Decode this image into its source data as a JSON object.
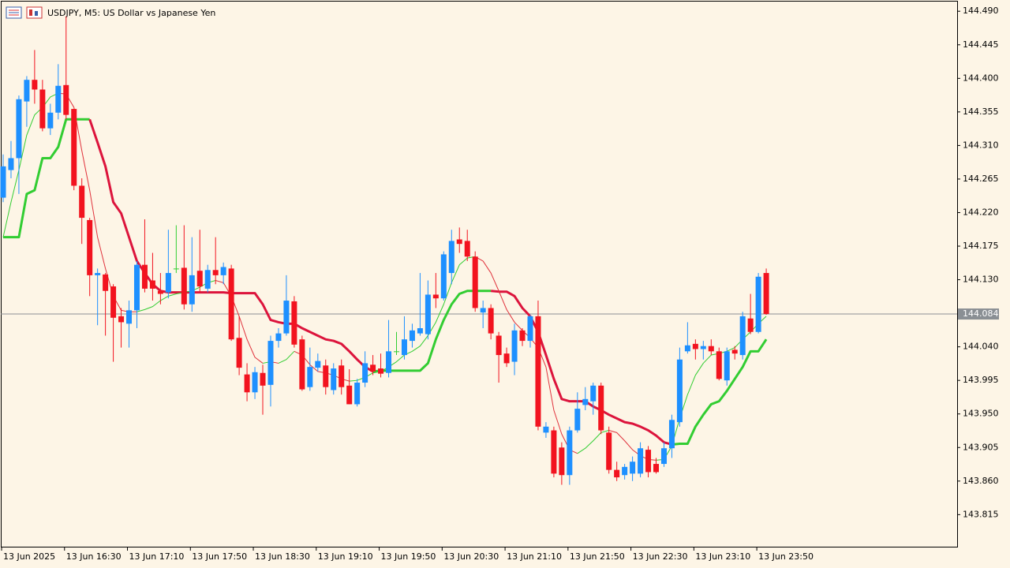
{
  "chart_data": {
    "type": "candlestick",
    "title": "USDJPY, M5:  US Dollar vs Japanese Yen",
    "categories": [
      "13 Jun 2025",
      null,
      null,
      null,
      null,
      null,
      null,
      null,
      "13 Jun 16:30",
      null,
      null,
      null,
      null,
      null,
      null,
      null,
      "13 Jun 17:10",
      null,
      null,
      null,
      null,
      null,
      null,
      null,
      "13 Jun 17:50",
      null,
      null,
      null,
      null,
      null,
      null,
      null,
      "13 Jun 18:30",
      null,
      null,
      null,
      null,
      null,
      null,
      null,
      "13 Jun 19:10",
      null,
      null,
      null,
      null,
      null,
      null,
      null,
      "13 Jun 19:50",
      null,
      null,
      null,
      null,
      null,
      null,
      null,
      "13 Jun 20:30",
      null,
      null,
      null,
      null,
      null,
      null,
      null,
      "13 Jun 21:10",
      null,
      null,
      null,
      null,
      null,
      null,
      null,
      "13 Jun 21:50",
      null,
      null,
      null,
      null,
      null,
      null,
      null,
      "13 Jun 22:30",
      null,
      null,
      null,
      null,
      null,
      null,
      null,
      "13 Jun 23:10",
      null,
      null,
      null,
      null,
      null,
      null,
      null,
      "13 Jun 23:50",
      null
    ],
    "open": [
      144.24,
      144.277,
      144.293,
      144.369,
      144.398,
      144.385,
      144.333,
      144.354,
      144.391,
      144.359,
      144.256,
      144.21,
      144.136,
      144.137,
      144.121,
      144.081,
      144.071,
      144.089,
      144.15,
      144.129,
      144.115,
      144.113,
      144.145,
      144.146,
      144.097,
      144.142,
      144.118,
      144.143,
      144.136,
      144.145,
      144.052,
      144.003,
      143.979,
      144.005,
      143.989,
      144.048,
      144.058,
      144.101,
      144.05,
      143.986,
      144.012,
      144.015,
      143.982,
      144.015,
      143.988,
      143.963,
      143.992,
      144.016,
      144.011,
      144.005,
      144.034,
      144.029,
      144.048,
      144.058,
      144.057,
      144.11,
      144.105,
      144.139,
      144.184,
      144.182,
      144.161,
      144.086,
      144.092,
      144.055,
      144.031,
      144.02,
      144.062,
      144.048,
      144.081,
      143.925,
      143.928,
      143.905,
      143.868,
      143.928,
      143.962,
      143.967,
      143.988,
      143.925,
      143.875,
      143.868,
      143.87,
      143.87,
      143.902,
      143.883,
      143.883,
      143.904,
      143.939,
      144.034,
      144.044,
      144.037,
      144.041,
      144.034,
      143.995,
      144.036,
      144.029,
      144.078,
      144.06,
      144.139
    ],
    "high": [
      144.298,
      144.316,
      144.377,
      144.403,
      144.438,
      144.398,
      144.366,
      144.419,
      144.483,
      144.359,
      144.266,
      144.213,
      144.145,
      144.139,
      144.124,
      144.092,
      144.102,
      144.155,
      144.211,
      144.166,
      144.139,
      144.197,
      144.203,
      144.203,
      144.187,
      144.197,
      144.15,
      144.187,
      144.153,
      144.15,
      144.081,
      144.018,
      144.013,
      144.016,
      144.055,
      144.065,
      144.136,
      144.108,
      144.055,
      144.039,
      144.031,
      144.023,
      144.018,
      144.023,
      144.01,
      143.997,
      144.034,
      144.029,
      144.031,
      144.076,
      144.06,
      144.081,
      144.071,
      144.139,
      144.129,
      144.139,
      144.168,
      144.197,
      144.2,
      144.197,
      144.168,
      144.102,
      144.097,
      144.06,
      144.039,
      144.071,
      144.065,
      144.083,
      144.102,
      143.939,
      143.933,
      143.912,
      143.933,
      143.979,
      143.986,
      143.992,
      143.992,
      143.933,
      143.886,
      143.883,
      143.893,
      143.912,
      143.907,
      143.891,
      143.912,
      143.949,
      144.039,
      144.073,
      144.05,
      144.048,
      144.05,
      144.039,
      144.039,
      144.041,
      144.087,
      144.111,
      144.139,
      144.145
    ],
    "low": [
      144.234,
      144.266,
      144.245,
      144.335,
      144.366,
      144.329,
      144.324,
      144.345,
      144.345,
      144.25,
      144.178,
      144.108,
      144.069,
      144.055,
      144.02,
      144.039,
      144.039,
      144.065,
      144.113,
      144.102,
      144.097,
      144.105,
      144.139,
      144.09,
      144.087,
      144.113,
      144.113,
      144.124,
      144.124,
      144.048,
      144.002,
      143.967,
      143.97,
      143.949,
      143.96,
      144.039,
      144.055,
      144.039,
      143.981,
      143.981,
      144.007,
      143.976,
      143.976,
      143.976,
      143.963,
      143.96,
      143.986,
      144.002,
      143.999,
      143.999,
      144.029,
      144.023,
      144.039,
      144.055,
      144.05,
      144.092,
      144.102,
      144.124,
      144.166,
      144.155,
      144.087,
      144.065,
      144.05,
      143.992,
      144.013,
      144.002,
      144.041,
      144.039,
      143.928,
      143.918,
      143.865,
      143.855,
      143.855,
      143.925,
      143.955,
      143.949,
      143.923,
      143.87,
      143.86,
      143.862,
      143.86,
      143.865,
      143.865,
      143.87,
      143.879,
      143.891,
      143.933,
      144.031,
      144.023,
      144.023,
      144.029,
      143.995,
      143.988,
      144.023,
      144.023,
      144.057,
      144.058,
      144.083
    ],
    "close": [
      144.282,
      144.293,
      144.372,
      144.398,
      144.385,
      144.333,
      144.354,
      144.39,
      144.351,
      144.256,
      144.213,
      144.136,
      144.139,
      144.115,
      144.079,
      144.073,
      144.089,
      144.15,
      144.118,
      144.118,
      144.111,
      144.139,
      144.145,
      144.097,
      144.136,
      144.121,
      144.143,
      144.136,
      144.147,
      144.05,
      144.012,
      143.979,
      144.006,
      143.988,
      144.048,
      144.058,
      144.102,
      144.043,
      143.983,
      144.013,
      144.021,
      143.986,
      144.011,
      143.986,
      143.963,
      143.992,
      144.018,
      144.007,
      144.004,
      144.034,
      144.034,
      144.05,
      144.062,
      144.065,
      144.11,
      144.105,
      144.164,
      144.182,
      144.178,
      144.161,
      144.092,
      144.092,
      144.058,
      144.029,
      144.018,
      144.062,
      144.048,
      144.081,
      143.933,
      143.933,
      143.87,
      143.868,
      143.928,
      143.957,
      143.97,
      143.988,
      143.928,
      143.875,
      143.865,
      143.879,
      143.886,
      143.904,
      143.872,
      143.872,
      143.904,
      143.942,
      144.023,
      144.042,
      144.037,
      144.041,
      144.034,
      143.997,
      144.034,
      144.031,
      144.081,
      144.06,
      144.134,
      144.084
    ],
    "candle_colors": {
      "up": "#1e90ff",
      "down": "#f2131f",
      "doji": "#32cd32"
    },
    "overlays": [
      {
        "width": 3,
        "up_color": "#32cd32",
        "down_color": "#dc143c",
        "values": [
          144.187,
          144.187,
          144.187,
          144.245,
          144.25,
          144.293,
          144.293,
          144.308,
          144.345,
          144.345,
          144.345,
          144.345,
          144.314,
          144.282,
          144.234,
          144.219,
          144.187,
          144.155,
          144.139,
          144.124,
          144.115,
          144.113,
          144.113,
          144.113,
          144.113,
          144.113,
          144.113,
          144.113,
          144.113,
          144.112,
          144.112,
          144.112,
          144.112,
          144.097,
          144.076,
          144.073,
          144.071,
          144.071,
          144.065,
          144.06,
          144.055,
          144.05,
          144.048,
          144.044,
          144.034,
          144.023,
          144.013,
          144.007,
          144.008,
          144.008,
          144.008,
          144.008,
          144.008,
          144.008,
          144.018,
          144.05,
          144.076,
          144.097,
          144.111,
          144.115,
          144.115,
          144.115,
          144.115,
          144.114,
          144.114,
          144.108,
          144.092,
          144.081,
          144.06,
          144.029,
          143.997,
          143.97,
          143.967,
          143.967,
          143.967,
          143.96,
          143.955,
          143.949,
          143.944,
          143.939,
          143.937,
          143.933,
          143.928,
          143.921,
          143.912,
          143.909,
          143.91,
          143.91,
          143.933,
          143.949,
          143.963,
          143.967,
          143.981,
          143.997,
          144.013,
          144.034,
          144.034,
          144.05
        ]
      },
      {
        "width": 1,
        "up_color": "#32cd32",
        "down_color": "#e0323c",
        "values": [
          144.187,
          144.234,
          144.277,
          144.324,
          144.351,
          144.361,
          144.375,
          144.38,
          144.379,
          144.361,
          144.303,
          144.25,
          144.187,
          144.145,
          144.108,
          144.089,
          144.087,
          144.087,
          144.09,
          144.094,
          144.102,
          144.108,
          144.111,
          144.113,
          144.115,
          144.12,
          144.126,
          144.129,
          144.126,
          144.108,
          144.081,
          144.05,
          144.026,
          144.018,
          144.02,
          144.018,
          144.023,
          144.034,
          144.029,
          144.016,
          144.007,
          144.005,
          144.002,
          143.997,
          143.994,
          143.995,
          143.999,
          144.005,
          144.007,
          144.013,
          144.02,
          144.029,
          144.034,
          144.041,
          144.055,
          144.073,
          144.097,
          144.126,
          144.15,
          144.159,
          144.161,
          144.155,
          144.139,
          144.115,
          144.09,
          144.073,
          144.062,
          144.052,
          144.039,
          144.013,
          143.955,
          143.923,
          143.902,
          143.897,
          143.904,
          143.914,
          143.925,
          143.928,
          143.925,
          143.914,
          143.902,
          143.894,
          143.889,
          143.888,
          143.889,
          143.907,
          143.944,
          143.976,
          144.002,
          144.018,
          144.029,
          144.031,
          144.034,
          144.039,
          144.05,
          144.06,
          144.071,
          144.081
        ]
      }
    ],
    "last_price": 144.084,
    "last_price_color": "#8a8f94",
    "ylim": [
      143.772,
      144.504
    ],
    "yticks": [
      {
        "value": 144.49,
        "label": "144.490"
      },
      144.445,
      {
        "value": 144.4,
        "label": "144.400"
      },
      144.355,
      {
        "value": 144.31,
        "label": "144.310"
      },
      144.265,
      {
        "value": 144.22,
        "label": "144.220"
      },
      144.175,
      {
        "value": 144.13,
        "label": "144.130"
      },
      {
        "value": 144.04,
        "label": "144.040"
      },
      143.995,
      {
        "value": 143.95,
        "label": "143.950"
      },
      143.905,
      {
        "value": 143.86,
        "label": "143.860"
      },
      143.815
    ],
    "grid": false
  }
}
